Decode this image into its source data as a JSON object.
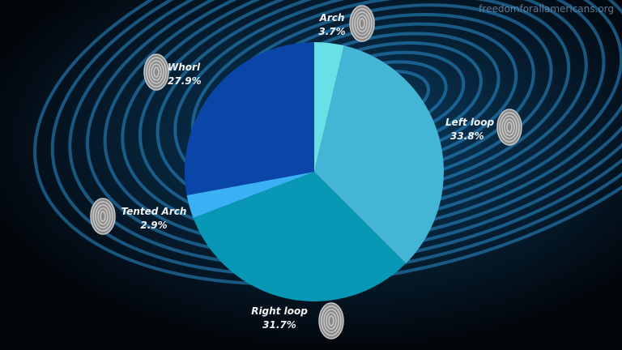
{
  "watermark": "freedomforallamericans.org",
  "chart_data": {
    "type": "pie",
    "start_angle": "top",
    "direction": "clockwise",
    "slices": [
      {
        "label": "Arch",
        "value": 3.7,
        "text": "3.7%",
        "color": "#6ae0e6"
      },
      {
        "label": "Left loop",
        "value": 33.8,
        "text": "33.8%",
        "color": "#45b5d5"
      },
      {
        "label": "Right loop",
        "value": 31.7,
        "text": "31.7%",
        "color": "#0898b5"
      },
      {
        "label": "Tented Arch",
        "value": 2.9,
        "text": "2.9%",
        "color": "#3ab0f5"
      },
      {
        "label": "Whorl",
        "value": 27.9,
        "text": "27.9%",
        "color": "#0a45a8"
      }
    ]
  }
}
